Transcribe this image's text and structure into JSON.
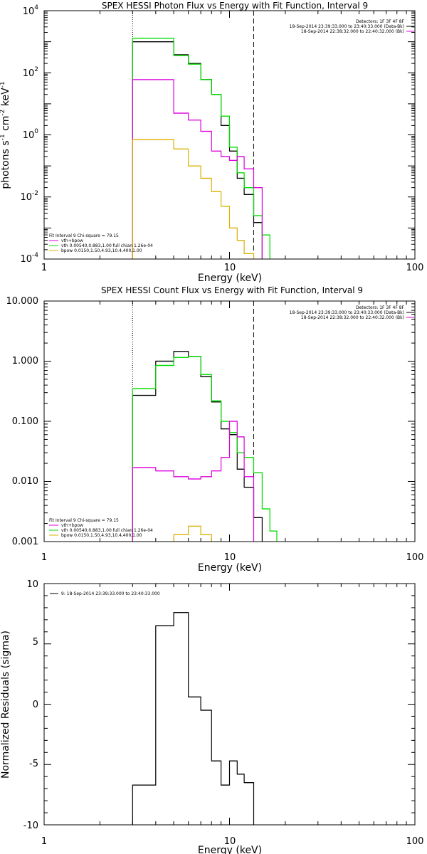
{
  "colors": {
    "data": "#000000",
    "total": "#00dd00",
    "vth": "#dd00dd",
    "bpow": "#ddb000"
  },
  "chart_data": [
    {
      "type": "line",
      "title": "SPEX HESSI Photon Flux vs Energy with Fit Function, Interval 9",
      "xlabel": "Energy (keV)",
      "ylabel_parts": [
        "photons s",
        "-1",
        " cm",
        "-2",
        " keV",
        "-1"
      ],
      "xscale": "log",
      "yscale": "log",
      "xlim": [
        1,
        100
      ],
      "ylim": [
        0.0001,
        10000
      ],
      "xtick_labels": [
        "1",
        "10",
        "100"
      ],
      "ytick_labels": [
        {
          "base": "10",
          "exp": "-4"
        },
        {
          "base": "10",
          "exp": "-2"
        },
        {
          "base": "10",
          "exp": "0"
        },
        {
          "base": "10",
          "exp": "2"
        },
        {
          "base": "10",
          "exp": "4"
        }
      ],
      "vlines": [
        {
          "x": 3.0,
          "style": "dotted"
        },
        {
          "x": 13.5,
          "style": "dashed"
        }
      ],
      "legend_top": [
        "Detectors: 1F 3F 4F 8F",
        "18-Sep-2014 23:39:33.000 to 23:40:33.000 (Data-Bk)",
        "18-Sep-2014 22:38:32.000 to 22:40:32.000 (Bk)"
      ],
      "legend_bottom": [
        "Fit Interval 9   Chi-square = 79.15",
        "vth+bpow",
        "vth 0.00540,0.883,1.00   full chian 1.26e-04",
        "bpow 0.0150,1.50,4.93,10.4,400,1.00"
      ],
      "edges": [
        3.0,
        4.0,
        5.0,
        6.0,
        7.0,
        8.0,
        9.0,
        10.0,
        11.0,
        12.0,
        13.5,
        15.0,
        16.5
      ],
      "series": [
        {
          "colorKey": "data",
          "values": [
            1000,
            1000,
            380,
            200,
            60,
            20,
            2,
            0.3,
            0.04,
            0.012,
            0.0015,
            null
          ]
        },
        {
          "colorKey": "total",
          "values": [
            1300,
            1300,
            360,
            190,
            60,
            20,
            4,
            0.4,
            0.06,
            0.02,
            0.0025,
            0.0006
          ]
        },
        {
          "colorKey": "vth",
          "values": [
            60,
            60,
            5,
            3,
            1.3,
            0.3,
            0.2,
            0.15,
            0.2,
            0.08,
            0.02,
            null
          ]
        },
        {
          "colorKey": "bpow",
          "values": [
            0.7,
            0.7,
            0.35,
            0.1,
            0.04,
            0.015,
            0.005,
            0.001,
            0.0004,
            0.00015,
            null,
            null
          ]
        }
      ]
    },
    {
      "type": "line",
      "title": "SPEX HESSI Count Flux vs Energy with Fit Function, Interval 9",
      "xlabel": "Energy (keV)",
      "xscale": "log",
      "yscale": "log",
      "xlim": [
        1,
        100
      ],
      "ylim": [
        0.001,
        10
      ],
      "xtick_labels": [
        "1",
        "10",
        "100"
      ],
      "ytick_labels": [
        "0.001",
        "0.010",
        "0.100",
        "1.000",
        "10.000"
      ],
      "vlines": [
        {
          "x": 3.0,
          "style": "dotted"
        },
        {
          "x": 13.5,
          "style": "dashed"
        }
      ],
      "legend_top": [
        "Detectors: 1F 3F 4F 8F",
        "18-Sep-2014 23:39:33.000 to 23:40:33.000 (Data-Bk)",
        "18-Sep-2014 22:38:32.000 to 22:40:32.000 (Bk)"
      ],
      "legend_bottom": [
        "Fit Interval 9   Chi-square = 79.15",
        "vth+bpow",
        "vth 0.00540,0.883,1.00   full chian 1.26e-04",
        "bpow 0.0150,1.50,4.93,10.4,400,1.00"
      ],
      "edges": [
        3.0,
        4.0,
        5.0,
        6.0,
        7.0,
        8.0,
        9.0,
        10.0,
        11.0,
        12.0,
        13.5,
        15.0,
        16.5,
        18.0
      ],
      "series": [
        {
          "colorKey": "data",
          "values": [
            0.27,
            1.0,
            1.45,
            1.2,
            0.55,
            0.21,
            0.075,
            0.06,
            0.016,
            0.008,
            0.0025,
            null,
            null
          ]
        },
        {
          "colorKey": "total",
          "values": [
            0.35,
            0.85,
            1.15,
            1.2,
            0.6,
            0.22,
            0.1,
            0.065,
            0.03,
            0.025,
            0.014,
            0.0035,
            0.0015
          ]
        },
        {
          "colorKey": "vth",
          "values": [
            0.017,
            0.015,
            0.012,
            0.011,
            0.012,
            0.015,
            0.025,
            0.1,
            0.055,
            0.012,
            null,
            null,
            null
          ]
        },
        {
          "colorKey": "bpow",
          "values": [
            null,
            null,
            0.0013,
            0.0018,
            0.0013,
            null,
            null,
            null,
            null,
            null,
            null,
            null,
            null
          ]
        }
      ]
    },
    {
      "type": "line",
      "xlabel": "Energy (keV)",
      "ylabel": "Normalized Residuals (sigma)",
      "xscale": "log",
      "yscale": "linear",
      "xlim": [
        1,
        100
      ],
      "ylim": [
        -10,
        10
      ],
      "xtick_labels": [
        "1",
        "10",
        "100"
      ],
      "ytick_labels": [
        "-10",
        "-5",
        "0",
        "5",
        "10"
      ],
      "legend_top": [
        "9: 18-Sep-2014 23:39:33.000 to 23:40:33.000"
      ],
      "edges": [
        3.0,
        4.0,
        5.0,
        6.0,
        7.0,
        8.0,
        9.0,
        10.0,
        11.0,
        12.0,
        13.5
      ],
      "series": [
        {
          "colorKey": "data",
          "values": [
            -6.7,
            6.5,
            7.6,
            0.6,
            -0.5,
            -4.7,
            -6.7,
            -4.7,
            -5.8,
            -6.5
          ]
        }
      ]
    }
  ]
}
